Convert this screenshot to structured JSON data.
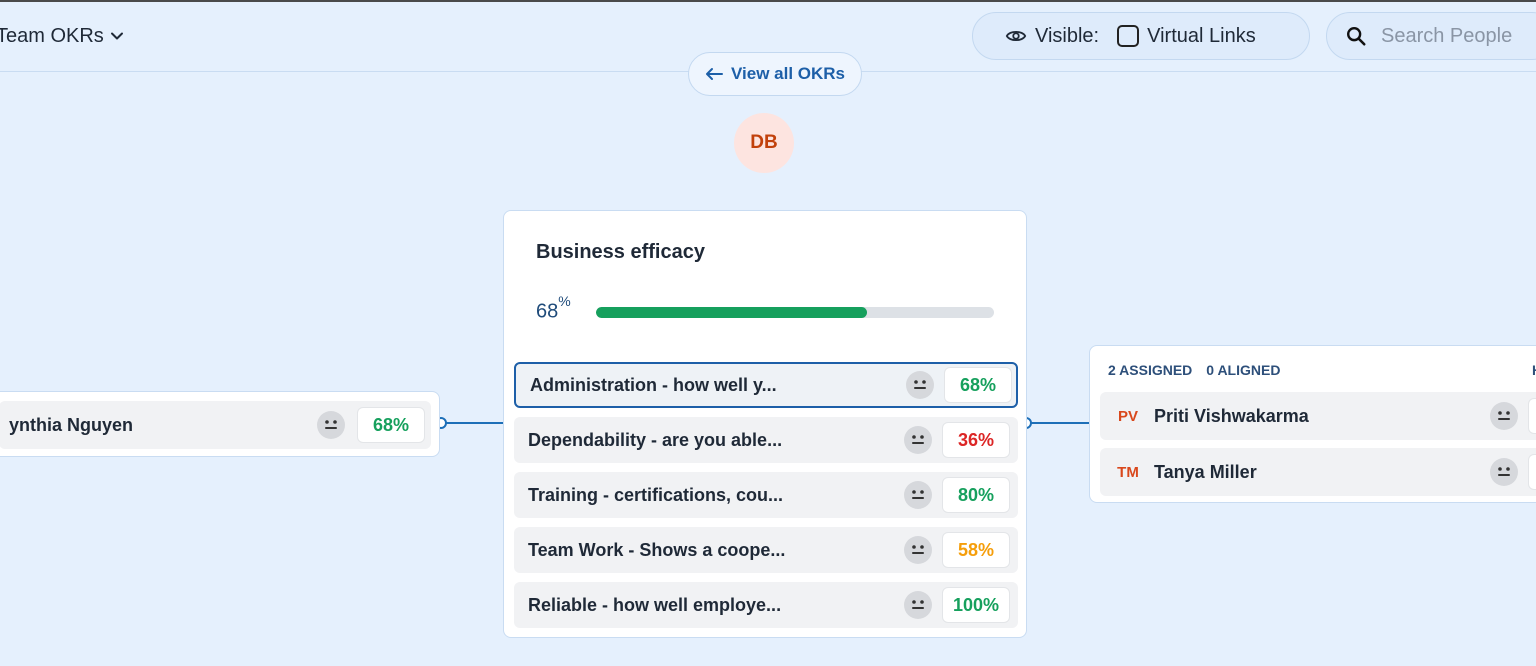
{
  "header": {
    "team_selector": "Team OKRs",
    "visible_label": "Visible:",
    "virtual_links_label": "Virtual Links",
    "search_placeholder": "Search People"
  },
  "nav": {
    "view_all": "View all OKRs"
  },
  "owner": {
    "initials": "DB"
  },
  "objective": {
    "title": "Business efficacy",
    "progress": 68,
    "progress_label": "68",
    "percent_sign": "%",
    "key_results": [
      {
        "label": "Administration - how well y...",
        "pct": "68%",
        "color": "#16a05d"
      },
      {
        "label": "Dependability - are you able...",
        "pct": "36%",
        "color": "#dc2626"
      },
      {
        "label": "Training - certifications, cou...",
        "pct": "80%",
        "color": "#16a05d"
      },
      {
        "label": "Team Work - Shows a coope...",
        "pct": "58%",
        "color": "#f59e0b"
      },
      {
        "label": "Reliable - how well employe...",
        "pct": "100%",
        "color": "#16a05d"
      }
    ]
  },
  "parent": {
    "name": "ynthia Nguyen",
    "pct": "68%",
    "color": "#16a05d"
  },
  "assigned": {
    "assigned_label": "2 ASSIGNED",
    "aligned_label": "0 ALIGNED",
    "edge_letter": "H",
    "people": [
      {
        "initials": "PV",
        "name": "Priti Vishwakarma"
      },
      {
        "initials": "TM",
        "name": "Tanya Miller"
      }
    ]
  }
}
